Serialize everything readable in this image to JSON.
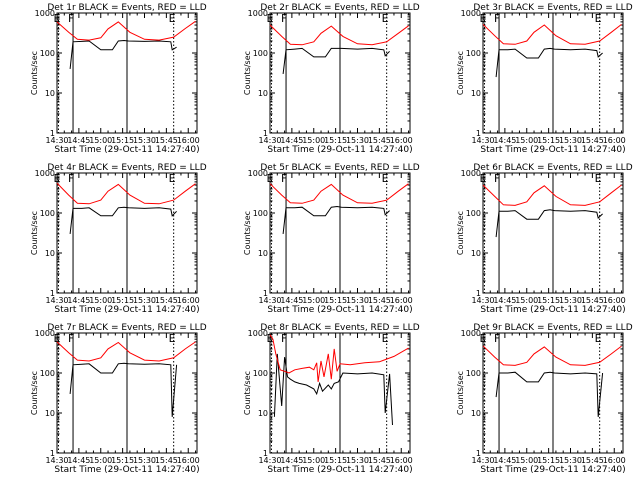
{
  "chart_data": [
    {
      "type": "line",
      "title": "Det 1r BLACK = Events, RED = LLD",
      "xlabel": "Start Time (29-Oct-11 14:27:40)",
      "ylabel": "Counts/sec",
      "yscale": "log",
      "ylim": [
        1,
        1000
      ],
      "xlim": [
        "14:30",
        "16:06"
      ],
      "x_ticks": [
        "14:30",
        "14:45",
        "15:00",
        "15:15",
        "15:30",
        "15:45",
        "16:00"
      ],
      "y_ticks": [
        "1",
        "10",
        "100",
        "1000"
      ],
      "markers": [
        {
          "label": "E",
          "time": "14:31"
        },
        {
          "label": "F",
          "time": "14:41"
        },
        {
          "label": "",
          "time": "15:18"
        },
        {
          "label": "E",
          "time": "15:50"
        }
      ],
      "series": [
        {
          "color": "#000000",
          "x": [
            "14:39",
            "14:41",
            "14:47",
            "14:52",
            "15:00",
            "15:08",
            "15:12",
            "15:16",
            "15:19",
            "15:30",
            "15:40",
            "15:48",
            "15:49",
            "15:52"
          ],
          "y": [
            40,
            190,
            195,
            200,
            120,
            120,
            200,
            205,
            200,
            195,
            200,
            190,
            120,
            140
          ]
        },
        {
          "color": "#ff0000",
          "x": [
            "14:30",
            "14:38",
            "14:44",
            "14:52",
            "15:00",
            "15:05",
            "15:12",
            "15:20",
            "15:30",
            "15:40",
            "15:50",
            "15:58",
            "16:05"
          ],
          "y": [
            600,
            330,
            220,
            210,
            240,
            400,
            600,
            330,
            220,
            210,
            250,
            410,
            620
          ]
        }
      ]
    },
    {
      "type": "line",
      "title": "Det 2r BLACK = Events, RED = LLD",
      "xlabel": "Start Time (29-Oct-11 14:27:40)",
      "ylabel": "Counts/sec",
      "yscale": "log",
      "ylim": [
        1,
        1000
      ],
      "xlim": [
        "14:30",
        "16:06"
      ],
      "x_ticks": [
        "14:30",
        "14:45",
        "15:00",
        "15:15",
        "15:30",
        "15:45",
        "16:00"
      ],
      "y_ticks": [
        "1",
        "10",
        "100",
        "1000"
      ],
      "markers": [
        {
          "label": "E",
          "time": "14:31"
        },
        {
          "label": "F",
          "time": "14:41"
        },
        {
          "label": "",
          "time": "15:18"
        },
        {
          "label": "E",
          "time": "15:50"
        }
      ],
      "series": [
        {
          "color": "#000000",
          "x": [
            "14:39",
            "14:41",
            "14:47",
            "14:52",
            "15:00",
            "15:08",
            "15:12",
            "15:16",
            "15:19",
            "15:30",
            "15:40",
            "15:48",
            "15:49",
            "15:52"
          ],
          "y": [
            30,
            120,
            125,
            130,
            80,
            80,
            130,
            130,
            130,
            125,
            130,
            120,
            85,
            110
          ]
        },
        {
          "color": "#ff0000",
          "x": [
            "14:30",
            "14:38",
            "14:44",
            "14:52",
            "15:00",
            "15:05",
            "15:12",
            "15:20",
            "15:30",
            "15:40",
            "15:50",
            "15:58",
            "16:05"
          ],
          "y": [
            500,
            260,
            165,
            160,
            190,
            310,
            470,
            260,
            170,
            160,
            190,
            310,
            480
          ]
        }
      ]
    },
    {
      "type": "line",
      "title": "Det 3r BLACK = Events, RED = LLD",
      "xlabel": "Start Time (29-Oct-11 14:27:40)",
      "ylabel": "Counts/sec",
      "yscale": "log",
      "ylim": [
        1,
        1000
      ],
      "xlim": [
        "14:30",
        "16:06"
      ],
      "x_ticks": [
        "14:30",
        "14:45",
        "15:00",
        "15:15",
        "15:30",
        "15:45",
        "16:00"
      ],
      "y_ticks": [
        "1",
        "10",
        "100",
        "1000"
      ],
      "markers": [
        {
          "label": "E",
          "time": "14:31"
        },
        {
          "label": "F",
          "time": "14:41"
        },
        {
          "label": "",
          "time": "15:18"
        },
        {
          "label": "E",
          "time": "15:50"
        }
      ],
      "series": [
        {
          "color": "#000000",
          "x": [
            "14:39",
            "14:41",
            "14:47",
            "14:52",
            "15:00",
            "15:08",
            "15:12",
            "15:16",
            "15:19",
            "15:30",
            "15:40",
            "15:48",
            "15:49",
            "15:52"
          ],
          "y": [
            25,
            120,
            120,
            125,
            75,
            75,
            125,
            130,
            125,
            120,
            125,
            115,
            80,
            100
          ]
        },
        {
          "color": "#ff0000",
          "x": [
            "14:30",
            "14:38",
            "14:44",
            "14:52",
            "15:00",
            "15:05",
            "15:12",
            "15:20",
            "15:30",
            "15:40",
            "15:50",
            "15:58",
            "16:05"
          ],
          "y": [
            520,
            270,
            170,
            165,
            200,
            330,
            500,
            270,
            170,
            165,
            200,
            330,
            520
          ]
        }
      ]
    },
    {
      "type": "line",
      "title": "Det 4r BLACK = Events, RED = LLD",
      "xlabel": "Start Time (29-Oct-11 14:27:40)",
      "ylabel": "Counts/sec",
      "yscale": "log",
      "ylim": [
        1,
        1000
      ],
      "xlim": [
        "14:30",
        "16:06"
      ],
      "x_ticks": [
        "14:30",
        "14:45",
        "15:00",
        "15:15",
        "15:30",
        "15:45",
        "16:00"
      ],
      "y_ticks": [
        "1",
        "10",
        "100",
        "1000"
      ],
      "markers": [
        {
          "label": "E",
          "time": "14:31"
        },
        {
          "label": "F",
          "time": "14:41"
        },
        {
          "label": "",
          "time": "15:18"
        },
        {
          "label": "E",
          "time": "15:50"
        }
      ],
      "series": [
        {
          "color": "#000000",
          "x": [
            "14:39",
            "14:41",
            "14:47",
            "14:52",
            "15:00",
            "15:08",
            "15:12",
            "15:16",
            "15:19",
            "15:30",
            "15:40",
            "15:48",
            "15:49",
            "15:52"
          ],
          "y": [
            30,
            130,
            130,
            135,
            85,
            85,
            135,
            140,
            135,
            130,
            135,
            125,
            85,
            110
          ]
        },
        {
          "color": "#ff0000",
          "x": [
            "14:30",
            "14:38",
            "14:44",
            "14:52",
            "15:00",
            "15:05",
            "15:12",
            "15:20",
            "15:30",
            "15:40",
            "15:50",
            "15:58",
            "16:05"
          ],
          "y": [
            560,
            280,
            175,
            170,
            210,
            350,
            520,
            280,
            175,
            170,
            210,
            350,
            540
          ]
        }
      ]
    },
    {
      "type": "line",
      "title": "Det 5r BLACK = Events, RED = LLD",
      "xlabel": "Start Time (29-Oct-11 14:27:40)",
      "ylabel": "Counts/sec",
      "yscale": "log",
      "ylim": [
        1,
        1000
      ],
      "xlim": [
        "14:30",
        "16:06"
      ],
      "x_ticks": [
        "14:30",
        "14:45",
        "15:00",
        "15:15",
        "15:30",
        "15:45",
        "16:00"
      ],
      "y_ticks": [
        "1",
        "10",
        "100",
        "1000"
      ],
      "markers": [
        {
          "label": "E",
          "time": "14:31"
        },
        {
          "label": "F",
          "time": "14:41"
        },
        {
          "label": "",
          "time": "15:18"
        },
        {
          "label": "E",
          "time": "15:50"
        }
      ],
      "series": [
        {
          "color": "#000000",
          "x": [
            "14:39",
            "14:41",
            "14:47",
            "14:52",
            "15:00",
            "15:08",
            "15:12",
            "15:16",
            "15:19",
            "15:30",
            "15:40",
            "15:48",
            "15:49",
            "15:52"
          ],
          "y": [
            30,
            135,
            135,
            140,
            85,
            85,
            140,
            145,
            140,
            135,
            140,
            130,
            90,
            115
          ]
        },
        {
          "color": "#ff0000",
          "x": [
            "14:30",
            "14:38",
            "14:44",
            "14:52",
            "15:00",
            "15:05",
            "15:12",
            "15:20",
            "15:30",
            "15:40",
            "15:50",
            "15:58",
            "16:05"
          ],
          "y": [
            540,
            280,
            180,
            175,
            210,
            350,
            520,
            280,
            180,
            175,
            210,
            350,
            540
          ]
        }
      ]
    },
    {
      "type": "line",
      "title": "Det 6r BLACK = Events, RED = LLD",
      "xlabel": "Start Time (29-Oct-11 14:27:40)",
      "ylabel": "Counts/sec",
      "yscale": "log",
      "ylim": [
        1,
        1000
      ],
      "xlim": [
        "14:30",
        "16:06"
      ],
      "x_ticks": [
        "14:30",
        "14:45",
        "15:00",
        "15:15",
        "15:30",
        "15:45",
        "16:00"
      ],
      "y_ticks": [
        "1",
        "10",
        "100",
        "1000"
      ],
      "markers": [
        {
          "label": "E",
          "time": "14:31"
        },
        {
          "label": "F",
          "time": "14:41"
        },
        {
          "label": "",
          "time": "15:18"
        },
        {
          "label": "E",
          "time": "15:50"
        }
      ],
      "series": [
        {
          "color": "#000000",
          "x": [
            "14:39",
            "14:41",
            "14:47",
            "14:52",
            "15:00",
            "15:08",
            "15:12",
            "15:16",
            "15:19",
            "15:30",
            "15:40",
            "15:48",
            "15:49",
            "15:52"
          ],
          "y": [
            25,
            110,
            110,
            115,
            70,
            70,
            115,
            120,
            115,
            110,
            115,
            105,
            75,
            95
          ]
        },
        {
          "color": "#ff0000",
          "x": [
            "14:30",
            "14:38",
            "14:44",
            "14:52",
            "15:00",
            "15:05",
            "15:12",
            "15:20",
            "15:30",
            "15:40",
            "15:50",
            "15:58",
            "16:05"
          ],
          "y": [
            500,
            260,
            160,
            155,
            190,
            320,
            480,
            260,
            160,
            155,
            190,
            320,
            500
          ]
        }
      ]
    },
    {
      "type": "line",
      "title": "Det 7r BLACK = Events, RED = LLD",
      "xlabel": "Start Time (29-Oct-11 14:27:40)",
      "ylabel": "Counts/sec",
      "yscale": "log",
      "ylim": [
        1,
        1000
      ],
      "xlim": [
        "14:30",
        "16:06"
      ],
      "x_ticks": [
        "14:30",
        "14:45",
        "15:00",
        "15:15",
        "15:30",
        "15:45",
        "16:00"
      ],
      "y_ticks": [
        "1",
        "10",
        "100",
        "1000"
      ],
      "markers": [
        {
          "label": "E",
          "time": "14:31"
        },
        {
          "label": "F",
          "time": "14:41"
        },
        {
          "label": "",
          "time": "15:18"
        },
        {
          "label": "E",
          "time": "15:50"
        }
      ],
      "series": [
        {
          "color": "#000000",
          "x": [
            "14:39",
            "14:41",
            "14:47",
            "14:52",
            "15:00",
            "15:08",
            "15:12",
            "15:16",
            "15:19",
            "15:30",
            "15:40",
            "15:48",
            "15:49",
            "15:52"
          ],
          "y": [
            30,
            160,
            165,
            170,
            100,
            100,
            170,
            175,
            170,
            165,
            170,
            160,
            8,
            160
          ]
        },
        {
          "color": "#ff0000",
          "x": [
            "14:30",
            "14:38",
            "14:44",
            "14:52",
            "15:00",
            "15:05",
            "15:12",
            "15:20",
            "15:30",
            "15:40",
            "15:50",
            "15:58",
            "16:05"
          ],
          "y": [
            600,
            320,
            210,
            200,
            240,
            400,
            580,
            320,
            210,
            200,
            240,
            400,
            600
          ]
        }
      ]
    },
    {
      "type": "line",
      "title": "Det 8r BLACK = Events, RED = LLD",
      "xlabel": "Start Time (29-Oct-11 14:27:40)",
      "ylabel": "Counts/sec",
      "yscale": "log",
      "ylim": [
        1,
        1000
      ],
      "xlim": [
        "14:30",
        "16:06"
      ],
      "x_ticks": [
        "14:30",
        "14:45",
        "15:00",
        "15:15",
        "15:30",
        "15:45",
        "16:00"
      ],
      "y_ticks": [
        "1",
        "10",
        "100",
        "1000"
      ],
      "markers": [
        {
          "label": "E",
          "time": "14:31"
        },
        {
          "label": "F",
          "time": "14:41"
        },
        {
          "label": "",
          "time": "15:18"
        },
        {
          "label": "E",
          "time": "15:50"
        }
      ],
      "series": [
        {
          "color": "#000000",
          "x": [
            "14:33",
            "14:35",
            "14:38",
            "14:40",
            "14:42",
            "14:44",
            "14:47",
            "14:50",
            "14:55",
            "15:00",
            "15:02",
            "15:04",
            "15:06",
            "15:10",
            "15:12",
            "15:14",
            "15:17",
            "15:20",
            "15:30",
            "15:40",
            "15:48",
            "15:49",
            "15:52",
            "15:54"
          ],
          "y": [
            8,
            300,
            15,
            250,
            80,
            70,
            60,
            55,
            50,
            40,
            30,
            55,
            35,
            50,
            40,
            55,
            60,
            100,
            95,
            100,
            90,
            10,
            95,
            5
          ]
        },
        {
          "color": "#ff0000",
          "x": [
            "14:30",
            "14:32",
            "14:34",
            "14:37",
            "14:40",
            "14:43",
            "14:47",
            "14:52",
            "14:57",
            "15:00",
            "15:02",
            "15:03",
            "15:05",
            "15:07",
            "15:10",
            "15:12",
            "15:14",
            "15:16",
            "15:18",
            "15:25",
            "15:35",
            "15:45",
            "15:55",
            "16:05"
          ],
          "y": [
            900,
            700,
            300,
            120,
            110,
            100,
            120,
            130,
            140,
            120,
            180,
            60,
            200,
            80,
            300,
            70,
            400,
            110,
            170,
            160,
            180,
            190,
            260,
            420
          ]
        }
      ]
    },
    {
      "type": "line",
      "title": "Det 9r BLACK = Events, RED = LLD",
      "xlabel": "Start Time (29-Oct-11 14:27:40)",
      "ylabel": "Counts/sec",
      "yscale": "log",
      "ylim": [
        1,
        1000
      ],
      "xlim": [
        "14:30",
        "16:06"
      ],
      "x_ticks": [
        "14:30",
        "14:45",
        "15:00",
        "15:15",
        "15:30",
        "15:45",
        "16:00"
      ],
      "y_ticks": [
        "1",
        "10",
        "100",
        "1000"
      ],
      "markers": [
        {
          "label": "E",
          "time": "14:31"
        },
        {
          "label": "F",
          "time": "14:41"
        },
        {
          "label": "",
          "time": "15:18"
        },
        {
          "label": "E",
          "time": "15:50"
        }
      ],
      "series": [
        {
          "color": "#000000",
          "x": [
            "14:39",
            "14:41",
            "14:47",
            "14:52",
            "15:00",
            "15:08",
            "15:12",
            "15:16",
            "15:19",
            "15:30",
            "15:40",
            "15:48",
            "15:49",
            "15:52"
          ],
          "y": [
            25,
            100,
            100,
            105,
            60,
            60,
            100,
            105,
            100,
            95,
            100,
            95,
            8,
            100
          ]
        },
        {
          "color": "#ff0000",
          "x": [
            "14:30",
            "14:38",
            "14:44",
            "14:52",
            "15:00",
            "15:05",
            "15:12",
            "15:20",
            "15:30",
            "15:40",
            "15:50",
            "15:58",
            "16:05"
          ],
          "y": [
            480,
            250,
            160,
            155,
            185,
            300,
            450,
            250,
            160,
            155,
            185,
            300,
            470
          ]
        }
      ]
    }
  ]
}
